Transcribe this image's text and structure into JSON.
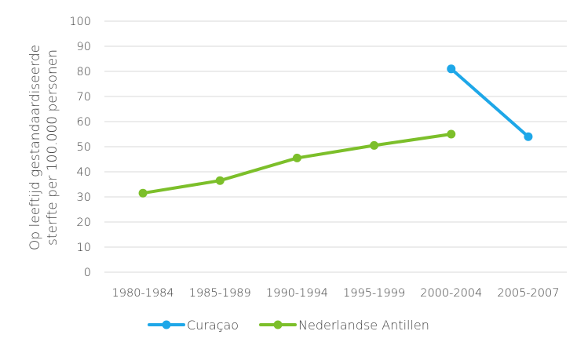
{
  "chart_data": {
    "type": "line",
    "categories": [
      "1980-1984",
      "1985-1989",
      "1990-1994",
      "1995-1999",
      "2000-2004",
      "2005-2007"
    ],
    "series": [
      {
        "name": "Curaçao",
        "color": "#1ea7e8",
        "values": [
          null,
          null,
          null,
          null,
          81,
          54
        ]
      },
      {
        "name": "Nederlandse Antillen",
        "color": "#7cbf2a",
        "values": [
          31.5,
          36.5,
          45.5,
          50.5,
          55,
          null
        ]
      }
    ],
    "ylabel_line1": "Op leeftijd gestandaardiseerde",
    "ylabel_line2": "sterfte per 100.000 personen",
    "ylim": [
      0,
      100
    ],
    "yticks": [
      0,
      10,
      20,
      30,
      40,
      50,
      60,
      70,
      80,
      90,
      100
    ],
    "grid": true,
    "legend_position": "bottom"
  }
}
